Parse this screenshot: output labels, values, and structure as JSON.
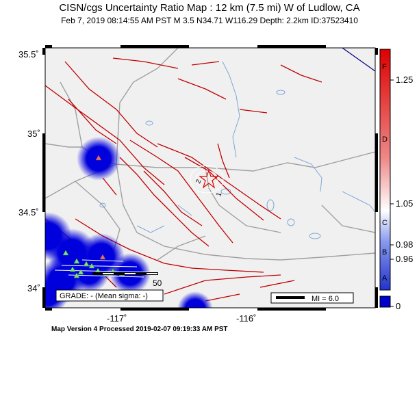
{
  "title": "CISN/cgs Uncertainty Ratio Map : 12 km (7.5 mi) W of Ludlow, CA",
  "subtitle": "Feb  7, 2019 08:14:55 AM PST    M 3.5    N34.71 W116.29    Depth: 2.2km    ID:37523410",
  "latitude_labels": [
    "35.5˚",
    "35˚",
    "34.5˚",
    "34˚"
  ],
  "longitude_labels": [
    "-117˚",
    "-116˚"
  ],
  "grade_box": "GRADE: - (Mean sigma: -)",
  "mi_box": "MI = 6.0",
  "scale_label": "50",
  "contour_labels": [
    "2",
    "1"
  ],
  "colorbar": {
    "letters": [
      "F",
      "D",
      "C",
      "B",
      "A"
    ],
    "ticks": [
      "1.25",
      "1.05",
      "0.98",
      "0.96",
      "0"
    ]
  },
  "footer": "Map Version 4 Processed 2019-02-07 09:19:33 AM PST",
  "colors": {
    "fault": "#c00000",
    "water": "#7fa6d8",
    "road": "#a0a0a0",
    "land": "#f0f0f0",
    "uncertainty_blob": "#0000dd",
    "epicenter": "#e00000",
    "station": "#7fe07f"
  },
  "icons": [
    "epicenter-star-icon",
    "station-triangle-icon"
  ]
}
